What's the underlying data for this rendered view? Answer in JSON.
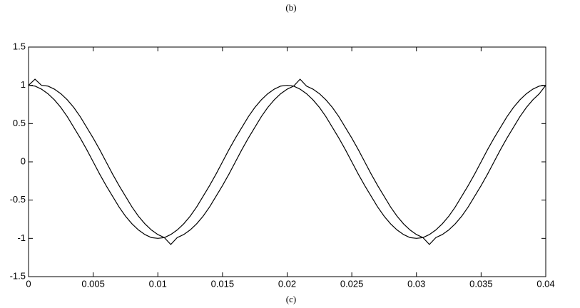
{
  "chart_data": {
    "type": "line",
    "caption_top": "(b)",
    "caption_bottom": "(c)",
    "x": [
      0,
      0.0005,
      0.001,
      0.0015,
      0.002,
      0.0025,
      0.003,
      0.0035,
      0.004,
      0.0045,
      0.005,
      0.0055,
      0.006,
      0.0065,
      0.007,
      0.0075,
      0.008,
      0.0085,
      0.009,
      0.0095,
      0.01,
      0.0105,
      0.011,
      0.0115,
      0.012,
      0.0125,
      0.013,
      0.0135,
      0.014,
      0.0145,
      0.015,
      0.0155,
      0.016,
      0.0165,
      0.017,
      0.0175,
      0.018,
      0.0185,
      0.019,
      0.0195,
      0.02,
      0.0205,
      0.021,
      0.0215,
      0.022,
      0.0225,
      0.023,
      0.0235,
      0.024,
      0.0245,
      0.025,
      0.0255,
      0.026,
      0.0265,
      0.027,
      0.0275,
      0.028,
      0.0285,
      0.029,
      0.0295,
      0.03,
      0.0305,
      0.031,
      0.0315,
      0.032,
      0.0325,
      0.033,
      0.0335,
      0.034,
      0.0345,
      0.035,
      0.0355,
      0.036,
      0.0365,
      0.037,
      0.0375,
      0.038,
      0.0385,
      0.039,
      0.0395,
      0.04
    ],
    "series": [
      {
        "color": "#000000",
        "values": [
          1,
          0.99,
          0.95,
          0.89,
          0.81,
          0.71,
          0.59,
          0.45,
          0.31,
          0.16,
          0,
          -0.16,
          -0.31,
          -0.45,
          -0.59,
          -0.71,
          -0.81,
          -0.89,
          -0.95,
          -0.99,
          -1,
          -0.99,
          -0.95,
          -0.89,
          -0.81,
          -0.71,
          -0.59,
          -0.45,
          -0.31,
          -0.16,
          0,
          0.16,
          0.31,
          0.45,
          0.59,
          0.71,
          0.81,
          0.89,
          0.95,
          0.99,
          1,
          0.99,
          0.95,
          0.89,
          0.81,
          0.71,
          0.59,
          0.45,
          0.31,
          0.16,
          0,
          -0.16,
          -0.31,
          -0.45,
          -0.59,
          -0.71,
          -0.81,
          -0.89,
          -0.95,
          -0.99,
          -1,
          -0.99,
          -0.95,
          -0.89,
          -0.81,
          -0.71,
          -0.59,
          -0.45,
          -0.31,
          -0.16,
          0,
          0.16,
          0.31,
          0.45,
          0.59,
          0.71,
          0.81,
          0.89,
          0.95,
          0.99,
          1
        ]
      },
      {
        "color": "#000000",
        "values": [
          1,
          1.08,
          1,
          0.99,
          0.95,
          0.89,
          0.81,
          0.71,
          0.59,
          0.45,
          0.31,
          0.16,
          0,
          -0.16,
          -0.31,
          -0.45,
          -0.59,
          -0.71,
          -0.81,
          -0.89,
          -0.95,
          -0.99,
          -1.08,
          -0.99,
          -0.95,
          -0.89,
          -0.81,
          -0.71,
          -0.59,
          -0.45,
          -0.31,
          -0.16,
          0,
          0.16,
          0.31,
          0.45,
          0.59,
          0.71,
          0.81,
          0.89,
          0.95,
          0.99,
          1.08,
          0.99,
          0.95,
          0.89,
          0.81,
          0.71,
          0.59,
          0.45,
          0.31,
          0.16,
          0,
          -0.16,
          -0.31,
          -0.45,
          -0.59,
          -0.71,
          -0.81,
          -0.89,
          -0.95,
          -0.99,
          -1.08,
          -0.99,
          -0.95,
          -0.89,
          -0.81,
          -0.71,
          -0.59,
          -0.45,
          -0.31,
          -0.16,
          0,
          0.16,
          0.31,
          0.45,
          0.59,
          0.71,
          0.81,
          0.89,
          1
        ]
      }
    ],
    "xlim": [
      0,
      0.04
    ],
    "xticks": [
      0,
      0.005,
      0.01,
      0.015,
      0.02,
      0.025,
      0.03,
      0.035,
      0.04
    ],
    "ylim": [
      -1.5,
      1.5
    ],
    "yticks": [
      -1.5,
      -1,
      -0.5,
      0,
      0.5,
      1,
      1.5
    ],
    "grid": false
  }
}
